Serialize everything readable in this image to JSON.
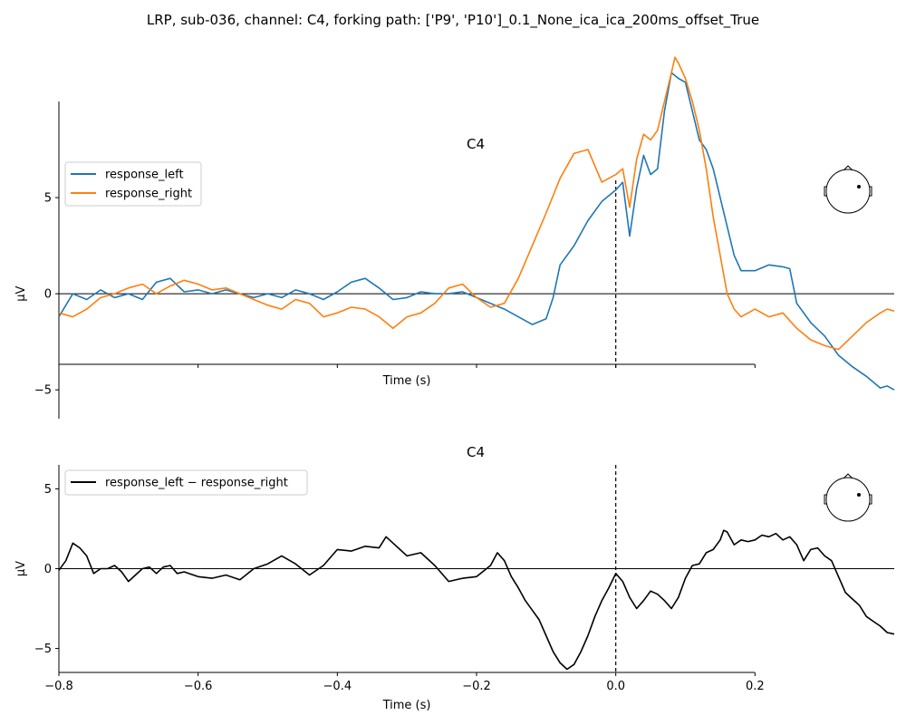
{
  "figure_title": "LRP, sub-036, channel: C4, forking path: ['P9', 'P10']_0.1_None_ica_ica_200ms_offset_True",
  "colors": {
    "response_left": "#1f77b4",
    "response_right": "#ff7f0e",
    "difference": "#000000",
    "axes": "#000000"
  },
  "chart_data": [
    {
      "type": "line",
      "title": "C4",
      "xlabel": "Time (s)",
      "ylabel": "µV",
      "xlim": [
        -0.8,
        0.4
      ],
      "ylim": [
        -6.5,
        10
      ],
      "x_ticks": [
        -0.8,
        -0.6,
        -0.4,
        -0.2,
        0.0,
        0.2
      ],
      "y_ticks": [
        -5,
        0,
        5
      ],
      "x_tick_labels_shown": false,
      "vline_x": 0.0,
      "hline_y": 0,
      "legend_position": "upper-left",
      "sensor_inset": "C4",
      "series": [
        {
          "name": "response_left",
          "color": "#1f77b4",
          "points": [
            [
              -0.8,
              -1.2
            ],
            [
              -0.78,
              0.0
            ],
            [
              -0.76,
              -0.3
            ],
            [
              -0.74,
              0.2
            ],
            [
              -0.72,
              -0.2
            ],
            [
              -0.7,
              0.0
            ],
            [
              -0.68,
              -0.3
            ],
            [
              -0.66,
              0.6
            ],
            [
              -0.64,
              0.8
            ],
            [
              -0.62,
              0.1
            ],
            [
              -0.6,
              0.2
            ],
            [
              -0.58,
              0.0
            ],
            [
              -0.56,
              0.2
            ],
            [
              -0.54,
              0.0
            ],
            [
              -0.52,
              -0.2
            ],
            [
              -0.5,
              0.0
            ],
            [
              -0.48,
              -0.2
            ],
            [
              -0.46,
              0.2
            ],
            [
              -0.44,
              0.0
            ],
            [
              -0.42,
              -0.3
            ],
            [
              -0.4,
              0.1
            ],
            [
              -0.38,
              0.6
            ],
            [
              -0.36,
              0.8
            ],
            [
              -0.34,
              0.3
            ],
            [
              -0.32,
              -0.3
            ],
            [
              -0.3,
              -0.2
            ],
            [
              -0.28,
              0.1
            ],
            [
              -0.26,
              0.0
            ],
            [
              -0.24,
              0.0
            ],
            [
              -0.22,
              0.1
            ],
            [
              -0.2,
              -0.2
            ],
            [
              -0.18,
              -0.5
            ],
            [
              -0.16,
              -0.8
            ],
            [
              -0.14,
              -1.2
            ],
            [
              -0.12,
              -1.6
            ],
            [
              -0.1,
              -1.3
            ],
            [
              -0.09,
              -0.2
            ],
            [
              -0.08,
              1.5
            ],
            [
              -0.06,
              2.5
            ],
            [
              -0.04,
              3.8
            ],
            [
              -0.02,
              4.8
            ],
            [
              0.0,
              5.4
            ],
            [
              0.01,
              5.8
            ],
            [
              0.02,
              3.0
            ],
            [
              0.03,
              5.5
            ],
            [
              0.04,
              7.2
            ],
            [
              0.05,
              6.2
            ],
            [
              0.06,
              6.5
            ],
            [
              0.07,
              9.5
            ],
            [
              0.08,
              11.5
            ],
            [
              0.09,
              11.2
            ],
            [
              0.1,
              11.0
            ],
            [
              0.11,
              9.5
            ],
            [
              0.12,
              8.0
            ],
            [
              0.13,
              7.5
            ],
            [
              0.14,
              6.5
            ],
            [
              0.15,
              5.0
            ],
            [
              0.16,
              3.5
            ],
            [
              0.17,
              2.0
            ],
            [
              0.18,
              1.2
            ],
            [
              0.2,
              1.2
            ],
            [
              0.22,
              1.5
            ],
            [
              0.24,
              1.4
            ],
            [
              0.25,
              1.3
            ],
            [
              0.26,
              -0.5
            ],
            [
              0.28,
              -1.5
            ],
            [
              0.3,
              -2.2
            ],
            [
              0.32,
              -3.2
            ],
            [
              0.34,
              -3.8
            ],
            [
              0.36,
              -4.3
            ],
            [
              0.38,
              -4.9
            ],
            [
              0.39,
              -4.8
            ],
            [
              0.4,
              -5.0
            ]
          ]
        },
        {
          "name": "response_right",
          "color": "#ff7f0e",
          "points": [
            [
              -0.8,
              -1.0
            ],
            [
              -0.78,
              -1.2
            ],
            [
              -0.76,
              -0.8
            ],
            [
              -0.74,
              -0.2
            ],
            [
              -0.72,
              0.0
            ],
            [
              -0.7,
              0.3
            ],
            [
              -0.68,
              0.5
            ],
            [
              -0.66,
              0.0
            ],
            [
              -0.64,
              0.4
            ],
            [
              -0.62,
              0.7
            ],
            [
              -0.6,
              0.5
            ],
            [
              -0.58,
              0.2
            ],
            [
              -0.56,
              0.3
            ],
            [
              -0.54,
              0.0
            ],
            [
              -0.52,
              -0.3
            ],
            [
              -0.5,
              -0.6
            ],
            [
              -0.48,
              -0.8
            ],
            [
              -0.46,
              -0.3
            ],
            [
              -0.44,
              -0.5
            ],
            [
              -0.42,
              -1.2
            ],
            [
              -0.4,
              -1.0
            ],
            [
              -0.38,
              -0.7
            ],
            [
              -0.36,
              -0.8
            ],
            [
              -0.34,
              -1.2
            ],
            [
              -0.32,
              -1.8
            ],
            [
              -0.3,
              -1.2
            ],
            [
              -0.28,
              -1.0
            ],
            [
              -0.26,
              -0.5
            ],
            [
              -0.24,
              0.3
            ],
            [
              -0.22,
              0.5
            ],
            [
              -0.2,
              -0.2
            ],
            [
              -0.18,
              -0.7
            ],
            [
              -0.16,
              -0.5
            ],
            [
              -0.14,
              0.8
            ],
            [
              -0.12,
              2.5
            ],
            [
              -0.1,
              4.2
            ],
            [
              -0.08,
              6.0
            ],
            [
              -0.06,
              7.3
            ],
            [
              -0.04,
              7.5
            ],
            [
              -0.02,
              5.8
            ],
            [
              0.0,
              6.2
            ],
            [
              0.01,
              6.5
            ],
            [
              0.02,
              4.5
            ],
            [
              0.03,
              7.0
            ],
            [
              0.04,
              8.3
            ],
            [
              0.05,
              8.0
            ],
            [
              0.06,
              8.5
            ],
            [
              0.07,
              10.0
            ],
            [
              0.08,
              11.5
            ],
            [
              0.085,
              12.3
            ],
            [
              0.09,
              12.0
            ],
            [
              0.1,
              11.2
            ],
            [
              0.11,
              10.0
            ],
            [
              0.12,
              8.5
            ],
            [
              0.13,
              6.5
            ],
            [
              0.14,
              4.0
            ],
            [
              0.15,
              2.0
            ],
            [
              0.16,
              0.0
            ],
            [
              0.17,
              -0.8
            ],
            [
              0.18,
              -1.2
            ],
            [
              0.2,
              -0.8
            ],
            [
              0.22,
              -1.2
            ],
            [
              0.24,
              -1.0
            ],
            [
              0.26,
              -1.8
            ],
            [
              0.28,
              -2.4
            ],
            [
              0.3,
              -2.7
            ],
            [
              0.32,
              -2.9
            ],
            [
              0.34,
              -2.2
            ],
            [
              0.36,
              -1.5
            ],
            [
              0.38,
              -1.0
            ],
            [
              0.39,
              -0.8
            ],
            [
              0.4,
              -0.9
            ]
          ]
        }
      ]
    },
    {
      "type": "line",
      "title": "C4",
      "xlabel": "Time (s)",
      "ylabel": "µV",
      "xlim": [
        -0.8,
        0.4
      ],
      "ylim": [
        -6.5,
        6.5
      ],
      "x_ticks": [
        -0.8,
        -0.6,
        -0.4,
        -0.2,
        0.0,
        0.2
      ],
      "x_tick_labels": [
        "−0.8",
        "−0.6",
        "−0.4",
        "−0.2",
        "0.0",
        "0.2"
      ],
      "y_ticks": [
        -5,
        0,
        5
      ],
      "vline_x": 0.0,
      "hline_y": 0,
      "legend_position": "upper-left",
      "sensor_inset": "C4",
      "series": [
        {
          "name": "response_left − response_right",
          "color": "#000000",
          "points": [
            [
              -0.8,
              -0.1
            ],
            [
              -0.79,
              0.5
            ],
            [
              -0.78,
              1.6
            ],
            [
              -0.77,
              1.3
            ],
            [
              -0.76,
              0.8
            ],
            [
              -0.75,
              -0.3
            ],
            [
              -0.74,
              0.0
            ],
            [
              -0.73,
              0.0
            ],
            [
              -0.72,
              0.2
            ],
            [
              -0.71,
              -0.2
            ],
            [
              -0.7,
              -0.8
            ],
            [
              -0.69,
              -0.4
            ],
            [
              -0.68,
              0.0
            ],
            [
              -0.67,
              0.1
            ],
            [
              -0.66,
              -0.3
            ],
            [
              -0.65,
              0.1
            ],
            [
              -0.64,
              0.2
            ],
            [
              -0.63,
              -0.3
            ],
            [
              -0.62,
              -0.2
            ],
            [
              -0.6,
              -0.5
            ],
            [
              -0.58,
              -0.6
            ],
            [
              -0.56,
              -0.4
            ],
            [
              -0.54,
              -0.7
            ],
            [
              -0.52,
              0.0
            ],
            [
              -0.5,
              0.3
            ],
            [
              -0.48,
              0.8
            ],
            [
              -0.46,
              0.3
            ],
            [
              -0.44,
              -0.4
            ],
            [
              -0.42,
              0.2
            ],
            [
              -0.4,
              1.2
            ],
            [
              -0.38,
              1.1
            ],
            [
              -0.36,
              1.4
            ],
            [
              -0.34,
              1.3
            ],
            [
              -0.33,
              2.0
            ],
            [
              -0.32,
              1.6
            ],
            [
              -0.3,
              0.8
            ],
            [
              -0.28,
              1.0
            ],
            [
              -0.26,
              0.2
            ],
            [
              -0.24,
              -0.8
            ],
            [
              -0.22,
              -0.6
            ],
            [
              -0.2,
              -0.5
            ],
            [
              -0.18,
              0.2
            ],
            [
              -0.17,
              1.0
            ],
            [
              -0.16,
              0.5
            ],
            [
              -0.15,
              -0.5
            ],
            [
              -0.14,
              -1.2
            ],
            [
              -0.13,
              -2.0
            ],
            [
              -0.12,
              -2.6
            ],
            [
              -0.11,
              -3.2
            ],
            [
              -0.1,
              -4.2
            ],
            [
              -0.09,
              -5.2
            ],
            [
              -0.08,
              -5.9
            ],
            [
              -0.07,
              -6.3
            ],
            [
              -0.06,
              -6.0
            ],
            [
              -0.05,
              -5.2
            ],
            [
              -0.04,
              -4.2
            ],
            [
              -0.03,
              -3.0
            ],
            [
              -0.02,
              -2.0
            ],
            [
              -0.01,
              -1.2
            ],
            [
              0.0,
              -0.3
            ],
            [
              0.01,
              -0.8
            ],
            [
              0.02,
              -1.8
            ],
            [
              0.03,
              -2.5
            ],
            [
              0.04,
              -2.0
            ],
            [
              0.05,
              -1.4
            ],
            [
              0.06,
              -1.6
            ],
            [
              0.07,
              -2.0
            ],
            [
              0.08,
              -2.5
            ],
            [
              0.09,
              -1.8
            ],
            [
              0.1,
              -0.6
            ],
            [
              0.11,
              0.2
            ],
            [
              0.12,
              0.3
            ],
            [
              0.13,
              1.0
            ],
            [
              0.14,
              1.2
            ],
            [
              0.15,
              1.8
            ],
            [
              0.155,
              2.4
            ],
            [
              0.16,
              2.3
            ],
            [
              0.17,
              1.5
            ],
            [
              0.18,
              1.8
            ],
            [
              0.19,
              1.7
            ],
            [
              0.2,
              1.8
            ],
            [
              0.21,
              2.1
            ],
            [
              0.22,
              2.0
            ],
            [
              0.23,
              2.2
            ],
            [
              0.24,
              1.8
            ],
            [
              0.25,
              2.0
            ],
            [
              0.26,
              1.5
            ],
            [
              0.27,
              0.5
            ],
            [
              0.28,
              1.2
            ],
            [
              0.29,
              1.3
            ],
            [
              0.3,
              0.8
            ],
            [
              0.31,
              0.5
            ],
            [
              0.32,
              -0.5
            ],
            [
              0.33,
              -1.5
            ],
            [
              0.34,
              -1.9
            ],
            [
              0.35,
              -2.3
            ],
            [
              0.36,
              -3.0
            ],
            [
              0.37,
              -3.3
            ],
            [
              0.38,
              -3.6
            ],
            [
              0.39,
              -4.0
            ],
            [
              0.4,
              -4.1
            ]
          ]
        }
      ]
    }
  ]
}
